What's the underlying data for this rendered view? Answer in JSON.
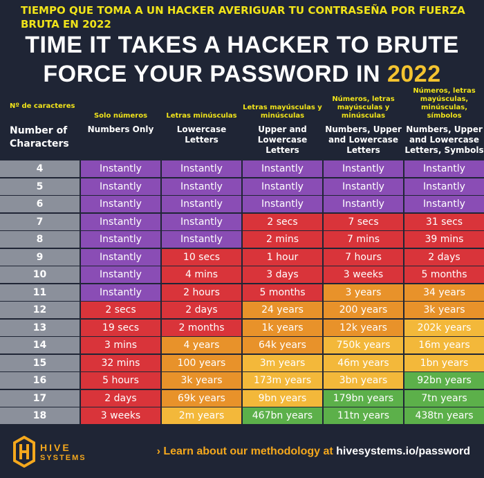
{
  "banner_es": "TIEMPO QUE TOMA A UN HACKER AVERIGUAR TU CONTRASEÑA POR FUERZA BRUTA EN 2022",
  "title": {
    "line1": "TIME IT TAKES A HACKER TO BRUTE",
    "line2_prefix": "FORCE YOUR PASSWORD IN ",
    "year": "2022"
  },
  "columns": [
    {
      "es": "Nº de caracteres",
      "en": "Number of Characters"
    },
    {
      "es": "Solo números",
      "en": "Numbers Only"
    },
    {
      "es": "Letras minúsculas",
      "en": "Lowercase Letters"
    },
    {
      "es": "Letras mayúsculas y minúsculas",
      "en": "Upper and Lowercase Letters"
    },
    {
      "es": "Números, letras mayúsculas y minúsculas",
      "en": "Numbers, Upper and Lowercase Letters"
    },
    {
      "es": "Números, letras mayúsculas, minúsculas, símbolos",
      "en": "Numbers, Upper and Lowercase Letters, Symbols"
    }
  ],
  "colors": {
    "purple": "#8a4db5",
    "red": "#d9343a",
    "orange": "#e8922a",
    "yellow": "#f3b83a",
    "green": "#5cb04a",
    "number_cell": "#8b909b",
    "accent": "#f4a81d"
  },
  "rows": [
    {
      "n": "4",
      "cells": [
        [
          "Instantly",
          "purple"
        ],
        [
          "Instantly",
          "purple"
        ],
        [
          "Instantly",
          "purple"
        ],
        [
          "Instantly",
          "purple"
        ],
        [
          "Instantly",
          "purple"
        ]
      ]
    },
    {
      "n": "5",
      "cells": [
        [
          "Instantly",
          "purple"
        ],
        [
          "Instantly",
          "purple"
        ],
        [
          "Instantly",
          "purple"
        ],
        [
          "Instantly",
          "purple"
        ],
        [
          "Instantly",
          "purple"
        ]
      ]
    },
    {
      "n": "6",
      "cells": [
        [
          "Instantly",
          "purple"
        ],
        [
          "Instantly",
          "purple"
        ],
        [
          "Instantly",
          "purple"
        ],
        [
          "Instantly",
          "purple"
        ],
        [
          "Instantly",
          "purple"
        ]
      ]
    },
    {
      "n": "7",
      "cells": [
        [
          "Instantly",
          "purple"
        ],
        [
          "Instantly",
          "purple"
        ],
        [
          "2 secs",
          "red"
        ],
        [
          "7 secs",
          "red"
        ],
        [
          "31 secs",
          "red"
        ]
      ]
    },
    {
      "n": "8",
      "cells": [
        [
          "Instantly",
          "purple"
        ],
        [
          "Instantly",
          "purple"
        ],
        [
          "2 mins",
          "red"
        ],
        [
          "7 mins",
          "red"
        ],
        [
          "39 mins",
          "red"
        ]
      ]
    },
    {
      "n": "9",
      "cells": [
        [
          "Instantly",
          "purple"
        ],
        [
          "10 secs",
          "red"
        ],
        [
          "1 hour",
          "red"
        ],
        [
          "7 hours",
          "red"
        ],
        [
          "2 days",
          "red"
        ]
      ]
    },
    {
      "n": "10",
      "cells": [
        [
          "Instantly",
          "purple"
        ],
        [
          "4 mins",
          "red"
        ],
        [
          "3 days",
          "red"
        ],
        [
          "3 weeks",
          "red"
        ],
        [
          "5 months",
          "red"
        ]
      ]
    },
    {
      "n": "11",
      "cells": [
        [
          "Instantly",
          "purple"
        ],
        [
          "2 hours",
          "red"
        ],
        [
          "5 months",
          "red"
        ],
        [
          "3 years",
          "orange"
        ],
        [
          "34 years",
          "orange"
        ]
      ]
    },
    {
      "n": "12",
      "cells": [
        [
          "2 secs",
          "red"
        ],
        [
          "2 days",
          "red"
        ],
        [
          "24 years",
          "orange"
        ],
        [
          "200 years",
          "orange"
        ],
        [
          "3k years",
          "orange"
        ]
      ]
    },
    {
      "n": "13",
      "cells": [
        [
          "19 secs",
          "red"
        ],
        [
          "2 months",
          "red"
        ],
        [
          "1k years",
          "orange"
        ],
        [
          "12k years",
          "orange"
        ],
        [
          "202k years",
          "yellow"
        ]
      ]
    },
    {
      "n": "14",
      "cells": [
        [
          "3 mins",
          "red"
        ],
        [
          "4 years",
          "orange"
        ],
        [
          "64k years",
          "orange"
        ],
        [
          "750k years",
          "yellow"
        ],
        [
          "16m years",
          "yellow"
        ]
      ]
    },
    {
      "n": "15",
      "cells": [
        [
          "32 mins",
          "red"
        ],
        [
          "100 years",
          "orange"
        ],
        [
          "3m years",
          "yellow"
        ],
        [
          "46m years",
          "yellow"
        ],
        [
          "1bn years",
          "yellow"
        ]
      ]
    },
    {
      "n": "16",
      "cells": [
        [
          "5 hours",
          "red"
        ],
        [
          "3k years",
          "orange"
        ],
        [
          "173m years",
          "yellow"
        ],
        [
          "3bn years",
          "yellow"
        ],
        [
          "92bn years",
          "green"
        ]
      ]
    },
    {
      "n": "17",
      "cells": [
        [
          "2 days",
          "red"
        ],
        [
          "69k years",
          "orange"
        ],
        [
          "9bn years",
          "yellow"
        ],
        [
          "179bn years",
          "green"
        ],
        [
          "7tn years",
          "green"
        ]
      ]
    },
    {
      "n": "18",
      "cells": [
        [
          "3 weeks",
          "red"
        ],
        [
          "2m years",
          "yellow"
        ],
        [
          "467bn years",
          "green"
        ],
        [
          "11tn years",
          "green"
        ],
        [
          "438tn years",
          "green"
        ]
      ]
    }
  ],
  "footer": {
    "logo_line1": "HIVE",
    "logo_line2": "SYSTEMS",
    "link_lead": "Learn about our methodology at ",
    "link_url": "hivesystems.io/password"
  }
}
